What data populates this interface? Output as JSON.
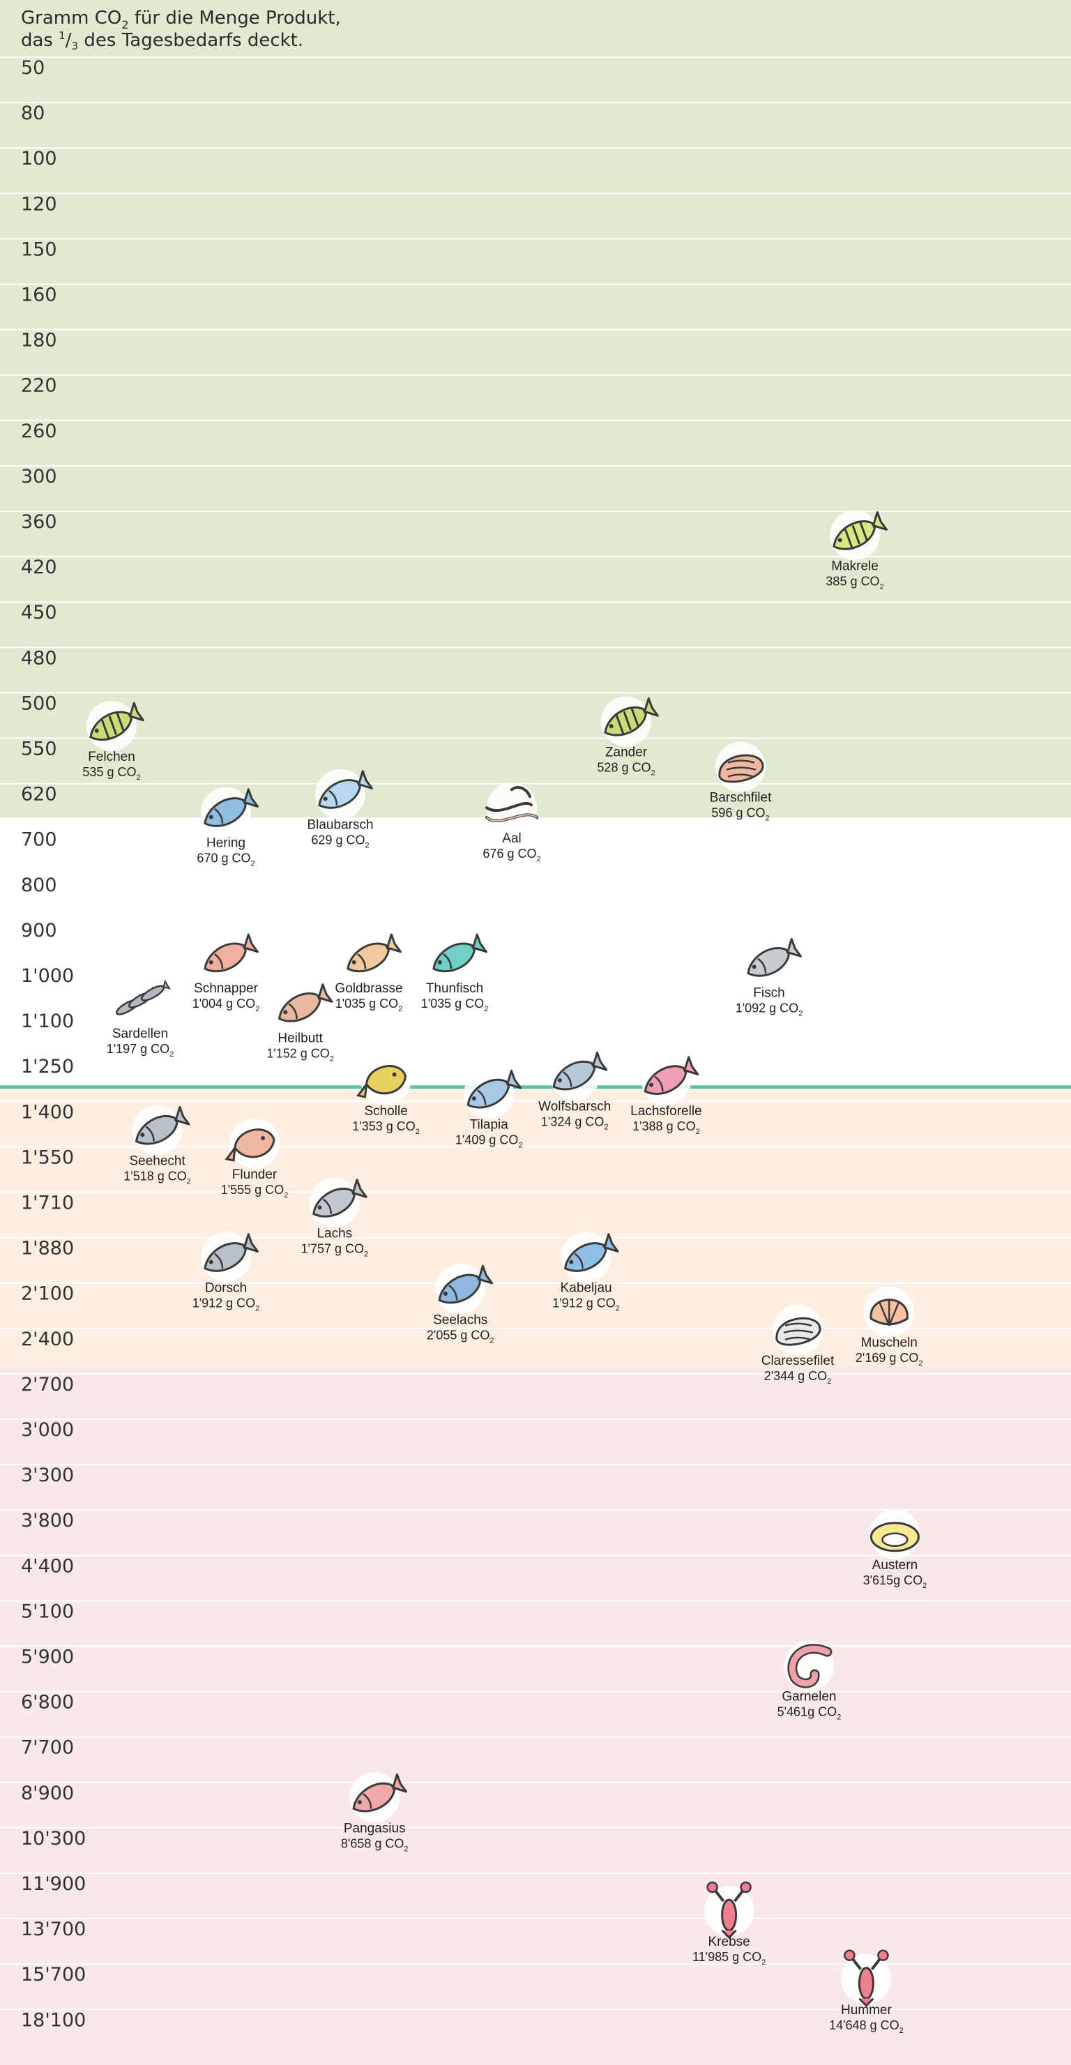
{
  "chart_data": {
    "type": "scatter",
    "title": {
      "line1_pre": "Gramm CO",
      "line1_sub": "2",
      "line1_post": " für die Menge Produkt,",
      "line2_pre": "das ",
      "line2_num": "1",
      "line2_slash": "/",
      "line2_den": "3",
      "line2_post": " des Tagesbedarfs deckt."
    },
    "yticks": [
      "50",
      "80",
      "100",
      "120",
      "150",
      "160",
      "180",
      "220",
      "260",
      "300",
      "360",
      "420",
      "450",
      "480",
      "500",
      "550",
      "620",
      "700",
      "800",
      "900",
      "1'000",
      "1'100",
      "1'250",
      "1'400",
      "1'550",
      "1'710",
      "1'880",
      "2'100",
      "2'400",
      "2'700",
      "3'000",
      "3'300",
      "3'800",
      "4'400",
      "5'100",
      "5'900",
      "6'800",
      "7'700",
      "8'900",
      "10'300",
      "11'900",
      "13'700",
      "15'700",
      "18'100"
    ],
    "zones": [
      {
        "from_index": 0,
        "to_index": 16.5,
        "color": "#dfead0"
      },
      {
        "from_index": 16.5,
        "to_index": 22.5,
        "color": "#ffffff"
      },
      {
        "from_index": 22.5,
        "to_index": 28.6,
        "color": "#fdeee2"
      },
      {
        "from_index": 28.6,
        "to_index": 43.8,
        "color": "#f9e8e8"
      }
    ],
    "threshold_index": 22.5,
    "threshold_color": "#5cc4a0",
    "gridline_color": "#ffffff",
    "points": [
      {
        "name": "Felchen",
        "value": "535 g CO",
        "sub": "2",
        "y_index": 15.1,
        "column": 1,
        "icon": "fish-perch-icon",
        "color": "#c8dc78"
      },
      {
        "name": "Zander",
        "value": "528 g CO",
        "sub": "2",
        "y_index": 15.0,
        "column": 10,
        "icon": "fish-perch-icon",
        "color": "#c8dc78"
      },
      {
        "name": "Barschfilet",
        "value": "596 g CO",
        "sub": "2",
        "y_index": 16.0,
        "column": 12,
        "icon": "fillet-icon",
        "color": "#f0b8a0"
      },
      {
        "name": "Makrele",
        "value": "385 g CO",
        "sub": "2",
        "y_index": 10.9,
        "column": 14,
        "icon": "fish-perch-icon",
        "color": "#d8e880"
      },
      {
        "name": "Hering",
        "value": "670 g CO",
        "sub": "2",
        "y_index": 17.0,
        "column": 3,
        "icon": "fish-icon",
        "color": "#8fbfe0"
      },
      {
        "name": "Blaubarsch",
        "value": "629 g CO",
        "sub": "2",
        "y_index": 16.6,
        "column": 5,
        "icon": "fish-icon",
        "color": "#b8d8f0"
      },
      {
        "name": "Aal",
        "value": "676 g CO",
        "sub": "2",
        "y_index": 16.9,
        "column": 8,
        "icon": "eel-icon",
        "color": "#e8c0a8"
      },
      {
        "name": "Fisch",
        "value": "1'092 g CO",
        "sub": "2",
        "y_index": 20.3,
        "column": 12.5,
        "icon": "fish-icon",
        "color": "#c8ccd0"
      },
      {
        "name": "Schnapper",
        "value": "1'004 g CO",
        "sub": "2",
        "y_index": 20.2,
        "column": 3,
        "icon": "fish-icon",
        "color": "#f0b0a0"
      },
      {
        "name": "Goldbrasse",
        "value": "1'035 g CO",
        "sub": "2",
        "y_index": 20.2,
        "column": 5.5,
        "icon": "fish-icon",
        "color": "#f2c8a0"
      },
      {
        "name": "Thunfisch",
        "value": "1'035 g CO",
        "sub": "2",
        "y_index": 20.2,
        "column": 7,
        "icon": "fish-icon",
        "color": "#70d0c8"
      },
      {
        "name": "Sardellen",
        "value": "1'197 g CO",
        "sub": "2",
        "y_index": 21.2,
        "column": 1.5,
        "icon": "sardines-icon",
        "color": "#b0b8c0"
      },
      {
        "name": "Heilbutt",
        "value": "1'152 g CO",
        "sub": "2",
        "y_index": 21.3,
        "column": 4.3,
        "icon": "fish-icon",
        "color": "#e8b8a0"
      },
      {
        "name": "Scholle",
        "value": "1'353 g CO",
        "sub": "2",
        "y_index": 22.9,
        "column": 5.8,
        "icon": "flatfish-icon",
        "color": "#e8d060"
      },
      {
        "name": "Tilapia",
        "value": "1'409 g CO",
        "sub": "2",
        "y_index": 23.2,
        "column": 7.6,
        "icon": "fish-icon",
        "color": "#a8c8e8"
      },
      {
        "name": "Wolfsbarsch",
        "value": "1'324 g CO",
        "sub": "2",
        "y_index": 22.8,
        "column": 9.1,
        "icon": "fish-icon",
        "color": "#b8c8d8"
      },
      {
        "name": "Lachsforelle",
        "value": "1'388 g CO",
        "sub": "2",
        "y_index": 22.9,
        "column": 10.7,
        "icon": "fish-icon",
        "color": "#f0a0b0"
      },
      {
        "name": "Seehecht",
        "value": "1'518 g CO",
        "sub": "2",
        "y_index": 24.0,
        "column": 1.8,
        "icon": "fish-icon",
        "color": "#b8c0c8"
      },
      {
        "name": "Flunder",
        "value": "1'555 g CO",
        "sub": "2",
        "y_index": 24.3,
        "column": 3.5,
        "icon": "flatfish-icon",
        "color": "#f0b8a0"
      },
      {
        "name": "Lachs",
        "value": "1'757 g CO",
        "sub": "2",
        "y_index": 25.6,
        "column": 4.9,
        "icon": "fish-icon",
        "color": "#c0c8d0"
      },
      {
        "name": "Dorsch",
        "value": "1'912 g CO",
        "sub": "2",
        "y_index": 26.8,
        "column": 3,
        "icon": "fish-icon",
        "color": "#b8c0c8"
      },
      {
        "name": "Seelachs",
        "value": "2'055 g CO",
        "sub": "2",
        "y_index": 27.5,
        "column": 7.1,
        "icon": "fish-icon",
        "color": "#90b8e0"
      },
      {
        "name": "Kabeljau",
        "value": "1'912 g CO",
        "sub": "2",
        "y_index": 26.8,
        "column": 9.3,
        "icon": "fish-icon",
        "color": "#90c0e8"
      },
      {
        "name": "Claressefilet",
        "value": "2'344 g CO",
        "sub": "2",
        "y_index": 28.4,
        "column": 13,
        "icon": "fillet-icon",
        "color": "#e8e8e8"
      },
      {
        "name": "Muscheln",
        "value": "2'169 g CO",
        "sub": "2",
        "y_index": 28.0,
        "column": 14.6,
        "icon": "shell-icon",
        "color": "#f8c0a0"
      },
      {
        "name": "Austern",
        "value": "3'615g CO",
        "sub": "2",
        "y_index": 32.9,
        "column": 14.7,
        "icon": "oyster-icon",
        "color": "#f8e890"
      },
      {
        "name": "Garnelen",
        "value": "5'461g CO",
        "sub": "2",
        "y_index": 35.8,
        "column": 13.2,
        "icon": "shrimp-icon",
        "color": "#f0a0a8"
      },
      {
        "name": "Pangasius",
        "value": "8'658 g CO",
        "sub": "2",
        "y_index": 38.7,
        "column": 5.6,
        "icon": "fish-icon",
        "color": "#f0a8a8"
      },
      {
        "name": "Krebse",
        "value": "11'985 g CO",
        "sub": "2",
        "y_index": 41.2,
        "column": 11.8,
        "icon": "lobster-icon",
        "color": "#f08090"
      },
      {
        "name": "Hummer",
        "value": "14'648 g CO",
        "sub": "2",
        "y_index": 42.7,
        "column": 14.2,
        "icon": "lobster-icon",
        "color": "#f08090"
      }
    ]
  }
}
